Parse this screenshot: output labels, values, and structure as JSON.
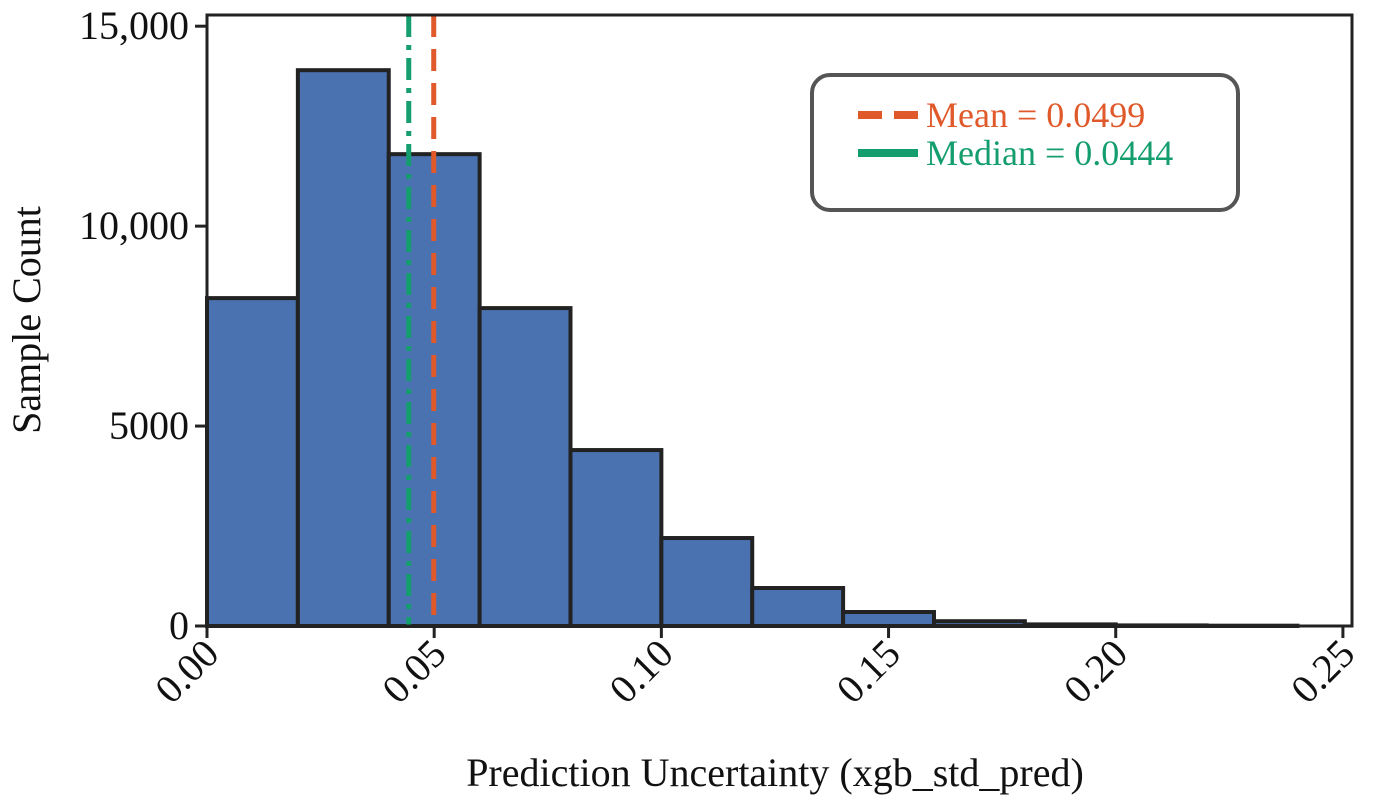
{
  "chart_data": {
    "type": "histogram",
    "x_label": "Prediction Uncertainty (xgb_std_pred)",
    "y_label": "Sample Count",
    "bins": [
      0,
      0.02,
      0.04,
      0.06,
      0.08,
      0.1,
      0.12,
      0.14,
      0.16,
      0.18,
      0.2,
      0.22,
      0.24
    ],
    "values": [
      8200,
      13900,
      11800,
      7950,
      4400,
      2200,
      950,
      350,
      120,
      40,
      15,
      8
    ],
    "color": "#4a72b0",
    "edge_color": "#222222",
    "xlim": [
      0,
      0.252
    ],
    "ylim": [
      0,
      15280
    ],
    "xticks": [
      {
        "value": 0,
        "label": "0.00"
      },
      {
        "value": 0.05,
        "label": "0.05"
      },
      {
        "value": 0.1,
        "label": "0.10"
      },
      {
        "value": 0.15,
        "label": "0.15"
      },
      {
        "value": 0.2,
        "label": "0.20"
      },
      {
        "value": 0.25,
        "label": "0.25"
      }
    ],
    "yticks": [
      0,
      5000,
      {
        "value": 10000,
        "label": "10,000"
      },
      {
        "value": 15000,
        "label": "15,000"
      }
    ],
    "vlines": [
      {
        "name": "Mean = 0.0499",
        "value": 0.0499,
        "color": "#e0592a",
        "style": "dashed"
      },
      {
        "name": "Median = 0.0444",
        "value": 0.0444,
        "color": "#149e6e",
        "style": "dashdot"
      }
    ],
    "legend": "upper right"
  }
}
